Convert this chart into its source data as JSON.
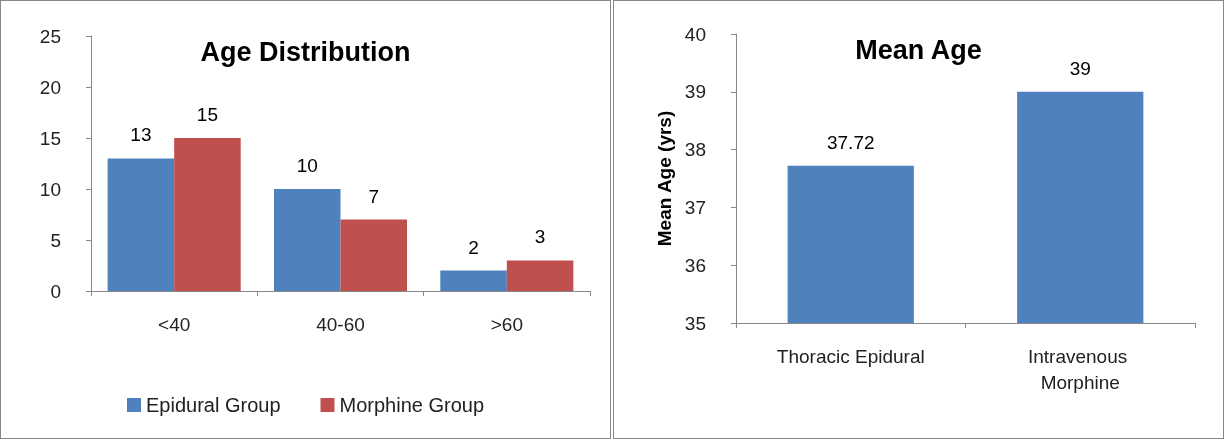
{
  "chart_data": [
    {
      "type": "bar",
      "title": "Age Distribution",
      "categories": [
        "<40",
        "40-60",
        ">60"
      ],
      "series": [
        {
          "name": "Epidural Group",
          "color": "#4f81bd",
          "values": [
            13,
            10,
            2
          ]
        },
        {
          "name": "Morphine Group",
          "color": "#c0504d",
          "values": [
            15,
            7,
            3
          ]
        }
      ],
      "ylim": [
        0,
        25
      ],
      "yticks": [
        0,
        5,
        10,
        15,
        20,
        25
      ],
      "data_labels": true,
      "legend": "bottom",
      "grid": false
    },
    {
      "type": "bar",
      "title": "Mean Age",
      "ylabel": "Mean Age (yrs)",
      "categories": [
        "Thoracic Epidural",
        "Intravenous Morphine"
      ],
      "values": [
        37.72,
        39
      ],
      "color": "#4f81bd",
      "ylim": [
        35,
        40
      ],
      "yticks": [
        35,
        36,
        37,
        38,
        39,
        40
      ],
      "data_labels": true,
      "grid": false
    }
  ]
}
